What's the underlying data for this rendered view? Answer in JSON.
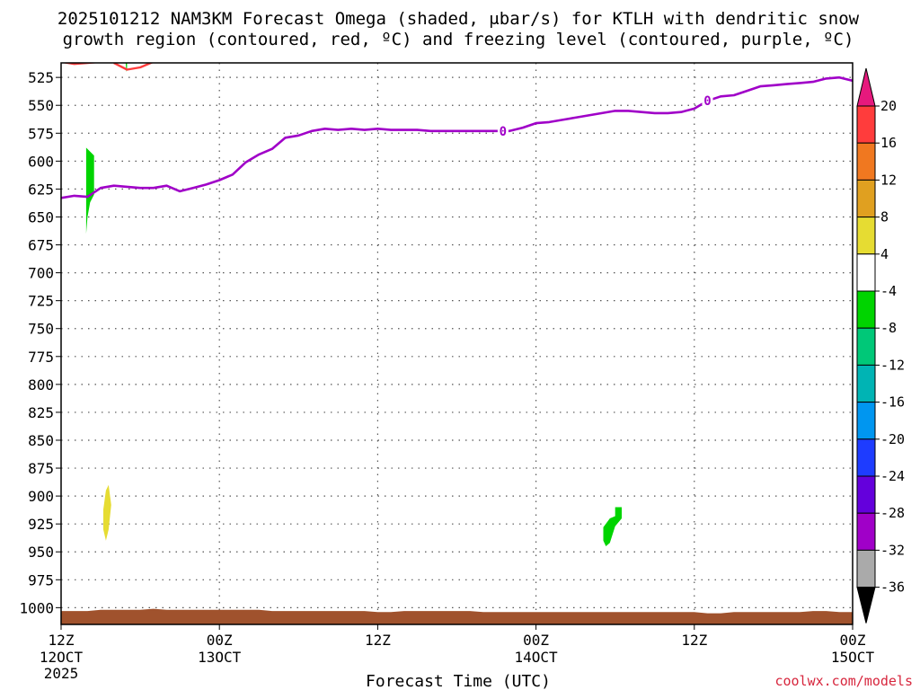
{
  "chart_data": {
    "type": "time-height cross section",
    "title_lines": [
      "2025101212 NAM3KM Forecast Omega (shaded, μbar/s) for KTLH with dendritic snow",
      "growth region (contoured, red, ºC) and freezing level (contoured, purple, ºC)"
    ],
    "xlabel": "Forecast Time (UTC)",
    "credit": "coolwx.com/models",
    "x_range_hours": [
      0,
      60
    ],
    "x_ticks": [
      {
        "hour": 0,
        "label": "12Z",
        "date": "12OCT",
        "year": "2025"
      },
      {
        "hour": 12,
        "label": "00Z",
        "date": "13OCT",
        "year": ""
      },
      {
        "hour": 24,
        "label": "12Z",
        "date": "",
        "year": ""
      },
      {
        "hour": 36,
        "label": "00Z",
        "date": "14OCT",
        "year": ""
      },
      {
        "hour": 48,
        "label": "12Z",
        "date": "",
        "year": ""
      },
      {
        "hour": 60,
        "label": "00Z",
        "date": "15OCT",
        "year": ""
      }
    ],
    "y_range_hpa": [
      1015,
      512
    ],
    "y_ticks": [
      "525",
      "550",
      "575",
      "600",
      "625",
      "650",
      "675",
      "700",
      "725",
      "750",
      "775",
      "800",
      "825",
      "850",
      "875",
      "900",
      "925",
      "950",
      "975",
      "1000"
    ],
    "colorbar": {
      "labels": [
        "20",
        "16",
        "12",
        "8",
        "4",
        "-4",
        "-8",
        "-12",
        "-16",
        "-20",
        "-24",
        "-28",
        "-32",
        "-36"
      ],
      "colors": [
        "#ff3c3c",
        "#f07820",
        "#e0a020",
        "#e6dc32",
        "#ffffff",
        "#00d400",
        "#00c878",
        "#00b4b4",
        "#0096f0",
        "#1e3cff",
        "#6400dc",
        "#a000c8",
        "#aaaaaa"
      ],
      "top_arrow_color": "#e6197d",
      "bottom_arrow_color": "#000000"
    },
    "freezing_level": {
      "label": "0",
      "color": "#a000c8",
      "label_hours": [
        33.5,
        49.0
      ],
      "points": [
        [
          0,
          633
        ],
        [
          1,
          631
        ],
        [
          2,
          632
        ],
        [
          3,
          624
        ],
        [
          4,
          622
        ],
        [
          5,
          623
        ],
        [
          6,
          624
        ],
        [
          7,
          624
        ],
        [
          8,
          622
        ],
        [
          9,
          627
        ],
        [
          10,
          624
        ],
        [
          11,
          621
        ],
        [
          12,
          617
        ],
        [
          13,
          612
        ],
        [
          14,
          601
        ],
        [
          15,
          594
        ],
        [
          16,
          589
        ],
        [
          17,
          579
        ],
        [
          18,
          577
        ],
        [
          19,
          573
        ],
        [
          20,
          571
        ],
        [
          21,
          572
        ],
        [
          22,
          571
        ],
        [
          23,
          572
        ],
        [
          24,
          571
        ],
        [
          25,
          572
        ],
        [
          26,
          572
        ],
        [
          27,
          572
        ],
        [
          28,
          573
        ],
        [
          29,
          573
        ],
        [
          30,
          573
        ],
        [
          31,
          573
        ],
        [
          32,
          573
        ],
        [
          33,
          573
        ],
        [
          34,
          573
        ],
        [
          35,
          570
        ],
        [
          36,
          566
        ],
        [
          37,
          565
        ],
        [
          38,
          563
        ],
        [
          39,
          561
        ],
        [
          40,
          559
        ],
        [
          41,
          557
        ],
        [
          42,
          555
        ],
        [
          43,
          555
        ],
        [
          44,
          556
        ],
        [
          45,
          557
        ],
        [
          46,
          557
        ],
        [
          47,
          556
        ],
        [
          48,
          553
        ],
        [
          49,
          546
        ],
        [
          50,
          542
        ],
        [
          51,
          541
        ],
        [
          52,
          537
        ],
        [
          53,
          533
        ],
        [
          54,
          532
        ],
        [
          55,
          531
        ],
        [
          56,
          530
        ],
        [
          57,
          529
        ],
        [
          58,
          526
        ],
        [
          59,
          525
        ],
        [
          60,
          528
        ]
      ]
    },
    "dgz_contour": {
      "color": "#ff3c3c",
      "segments": [
        [
          [
            0,
            511
          ],
          [
            1,
            513
          ],
          [
            2,
            512
          ],
          [
            3,
            511
          ],
          [
            4,
            510
          ]
        ],
        [
          [
            4,
            512
          ],
          [
            5,
            518
          ],
          [
            6,
            516
          ],
          [
            7,
            511
          ]
        ]
      ]
    },
    "omega_regions": [
      {
        "color": "#00d400",
        "value_range": [
          -8,
          -4
        ],
        "points": [
          [
            1.9,
            588
          ],
          [
            2.5,
            595
          ],
          [
            2.5,
            630
          ],
          [
            2.2,
            637
          ],
          [
            2.0,
            650
          ],
          [
            1.9,
            665
          ]
        ]
      },
      {
        "color": "#00d400",
        "value_range": [
          -8,
          -4
        ],
        "points": [
          [
            4.9,
            512
          ],
          [
            5.0,
            512
          ],
          [
            5.0,
            518
          ],
          [
            4.95,
            520
          ]
        ]
      },
      {
        "color": "#e6dc32",
        "value_range": [
          4,
          8
        ],
        "points": [
          [
            3.4,
            895
          ],
          [
            3.6,
            890
          ],
          [
            3.8,
            908
          ],
          [
            3.6,
            930
          ],
          [
            3.4,
            940
          ],
          [
            3.2,
            930
          ],
          [
            3.2,
            912
          ]
        ]
      },
      {
        "color": "#00d400",
        "value_range": [
          -8,
          -4
        ],
        "points": [
          [
            42.0,
            910
          ],
          [
            42.5,
            910
          ],
          [
            42.5,
            920
          ],
          [
            42.0,
            927
          ],
          [
            41.6,
            942
          ],
          [
            41.3,
            945
          ],
          [
            41.1,
            940
          ],
          [
            41.1,
            928
          ],
          [
            41.6,
            920
          ],
          [
            42.0,
            918
          ]
        ]
      }
    ],
    "terrain": {
      "color": "#a0522d",
      "top_hpa": [
        1003,
        1003,
        1003,
        1002,
        1002,
        1002,
        1002,
        1001,
        1002,
        1002,
        1002,
        1002,
        1002,
        1002,
        1002,
        1002,
        1003,
        1003,
        1003,
        1003,
        1003,
        1003,
        1003,
        1003,
        1004,
        1004,
        1003,
        1003,
        1003,
        1003,
        1003,
        1003,
        1004,
        1004,
        1004,
        1004,
        1004,
        1004,
        1004,
        1004,
        1004,
        1004,
        1004,
        1004,
        1004,
        1004,
        1004,
        1004,
        1004,
        1005,
        1005,
        1004,
        1004,
        1004,
        1004,
        1004,
        1004,
        1003,
        1003,
        1004,
        1004
      ]
    }
  }
}
